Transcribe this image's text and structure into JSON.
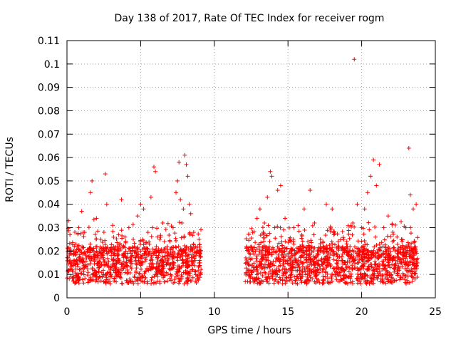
{
  "chart_data": {
    "type": "scatter",
    "title": "Day 138 of 2017, Rate Of TEC Index for receiver rogm",
    "xlabel": "GPS time / hours",
    "ylabel": "ROTI / TECUs",
    "xlim": [
      0,
      25
    ],
    "ylim": [
      0,
      0.11
    ],
    "xticks": [
      "0",
      "5",
      "10",
      "15",
      "20",
      "25"
    ],
    "yticks": [
      "0",
      "0.01",
      "0.02",
      "0.03",
      "0.04",
      "0.05",
      "0.06",
      "0.07",
      "0.08",
      "0.09",
      "0.1",
      "0.11"
    ],
    "grid": true,
    "marker": "+",
    "color": "#ff0000",
    "data_gap": [
      9.1,
      12.1
    ],
    "series": [
      {
        "x": [
          0.1,
          0.2,
          0.3,
          0.5,
          0.8,
          1.0,
          1.2,
          1.5,
          1.7,
          1.6,
          2.0,
          2.3,
          2.6,
          2.7,
          2.9,
          3.1,
          3.5,
          3.7,
          3.9,
          4.2,
          4.5,
          4.8,
          5.0,
          5.2,
          5.5,
          5.7,
          5.8,
          5.9,
          6.0,
          6.3,
          6.5,
          6.8,
          7.0,
          7.2,
          7.4,
          7.5,
          7.6,
          7.7,
          7.8,
          7.9,
          8.0,
          8.1,
          8.2,
          8.3,
          8.4,
          8.6,
          8.8,
          9.0,
          12.3,
          12.6,
          12.9,
          13.1,
          13.4,
          13.6,
          13.8,
          13.9,
          14.1,
          14.3,
          14.5,
          14.8,
          15.1,
          15.4,
          15.7,
          15.9,
          16.1,
          16.5,
          16.8,
          17.2,
          17.6,
          18.0,
          18.4,
          18.8,
          19.1,
          19.4,
          19.5,
          19.7,
          20.0,
          20.2,
          20.4,
          20.6,
          20.8,
          21.0,
          21.2,
          21.5,
          21.8,
          22.1,
          22.4,
          22.7,
          23.0,
          23.2,
          23.3,
          23.5,
          23.7
        ],
        "y": [
          0.033,
          0.027,
          0.015,
          0.022,
          0.03,
          0.037,
          0.028,
          0.021,
          0.05,
          0.045,
          0.034,
          0.025,
          0.053,
          0.04,
          0.02,
          0.031,
          0.027,
          0.042,
          0.018,
          0.03,
          0.025,
          0.035,
          0.04,
          0.038,
          0.028,
          0.043,
          0.03,
          0.056,
          0.054,
          0.025,
          0.032,
          0.02,
          0.012,
          0.03,
          0.045,
          0.05,
          0.058,
          0.042,
          0.032,
          0.038,
          0.061,
          0.057,
          0.052,
          0.04,
          0.036,
          0.028,
          0.02,
          0.016,
          0.02,
          0.028,
          0.034,
          0.038,
          0.032,
          0.043,
          0.054,
          0.052,
          0.03,
          0.046,
          0.048,
          0.034,
          0.025,
          0.03,
          0.02,
          0.018,
          0.038,
          0.046,
          0.032,
          0.025,
          0.04,
          0.038,
          0.024,
          0.02,
          0.018,
          0.032,
          0.102,
          0.04,
          0.03,
          0.038,
          0.045,
          0.052,
          0.059,
          0.048,
          0.057,
          0.03,
          0.035,
          0.024,
          0.026,
          0.025,
          0.03,
          0.064,
          0.044,
          0.038,
          0.04
        ]
      }
    ]
  }
}
